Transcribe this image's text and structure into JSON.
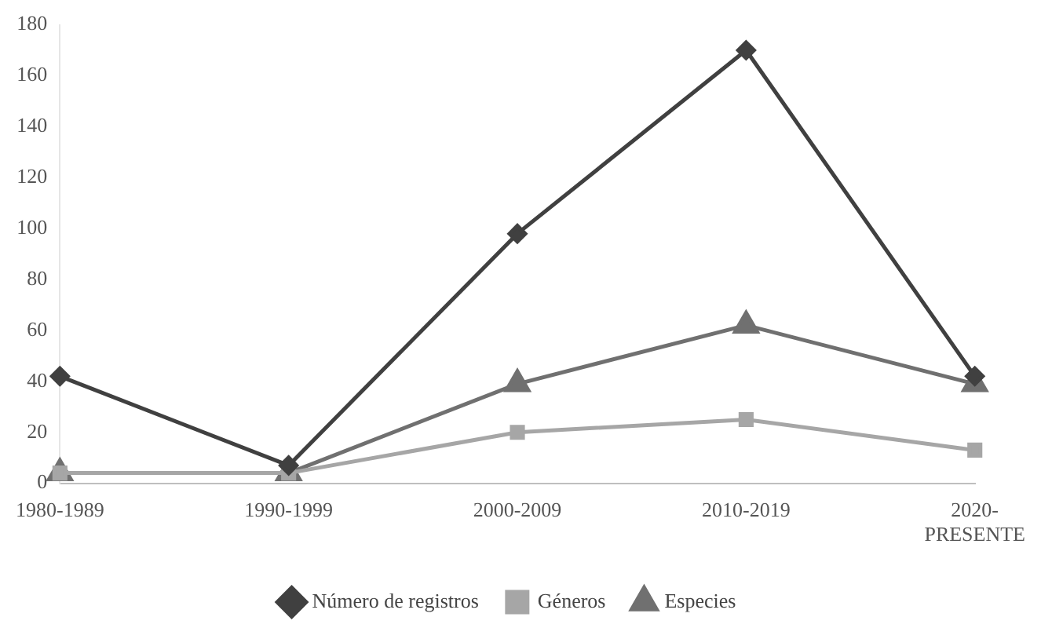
{
  "chart_data": {
    "type": "line",
    "categories": [
      "1980-1989",
      "1990-1999",
      "2000-2009",
      "2010-2019",
      "2020-PRESENTE"
    ],
    "series": [
      {
        "name": "Número de registros",
        "color": "#404040",
        "marker": "diamond",
        "values": [
          42,
          7,
          98,
          170,
          42
        ]
      },
      {
        "name": "Géneros",
        "color": "#a6a6a6",
        "marker": "square",
        "values": [
          4,
          4,
          20,
          25,
          13
        ]
      },
      {
        "name": "Especies",
        "color": "#707070",
        "marker": "triangle",
        "values": [
          4,
          4,
          39,
          62,
          39
        ]
      }
    ],
    "ylim": [
      0,
      180
    ],
    "yticks": [
      0,
      20,
      40,
      60,
      80,
      100,
      120,
      140,
      160,
      180
    ],
    "grid": false,
    "legend": "bottom"
  }
}
